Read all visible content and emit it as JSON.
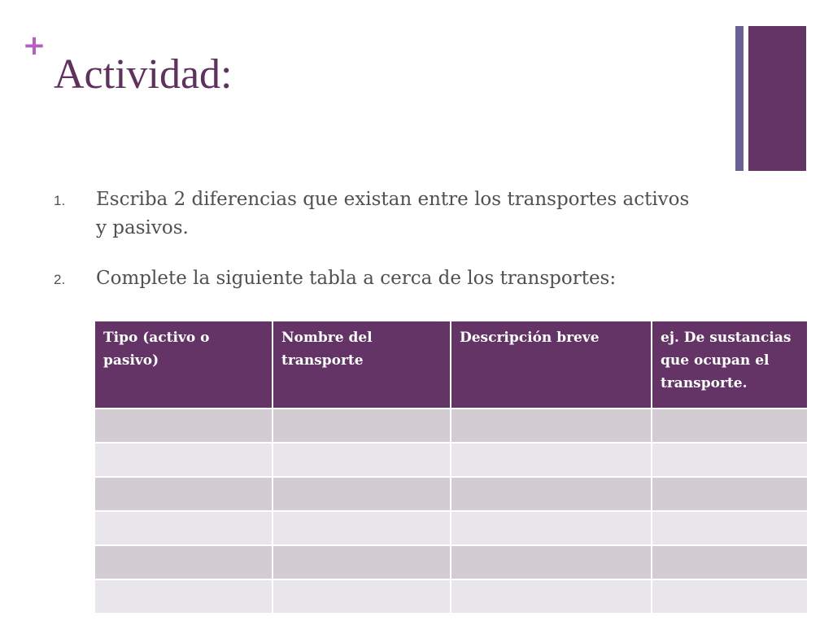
{
  "slide": {
    "title": "Actividad:",
    "list_items": [
      {
        "number": "1.",
        "text": "Escriba 2 diferencias que existan entre los transportes activos y pasivos."
      },
      {
        "number": "2.",
        "text": "Complete la siguiente tabla a cerca de los transportes:"
      }
    ]
  },
  "table": {
    "headers": [
      "Tipo  (activo o pasivo)",
      "Nombre del transporte",
      "Descripción breve",
      "ej. De sustancias que ocupan el transporte."
    ],
    "row_count": 6
  },
  "colors": {
    "accent_purple": "#643466",
    "plus_mark": "#b45fc1",
    "accent_bar_thin": "#6a6098",
    "row_odd": "#d3ccd3",
    "row_even": "#e8e6ea"
  },
  "icons": {
    "plus_mark": "plus-icon"
  }
}
